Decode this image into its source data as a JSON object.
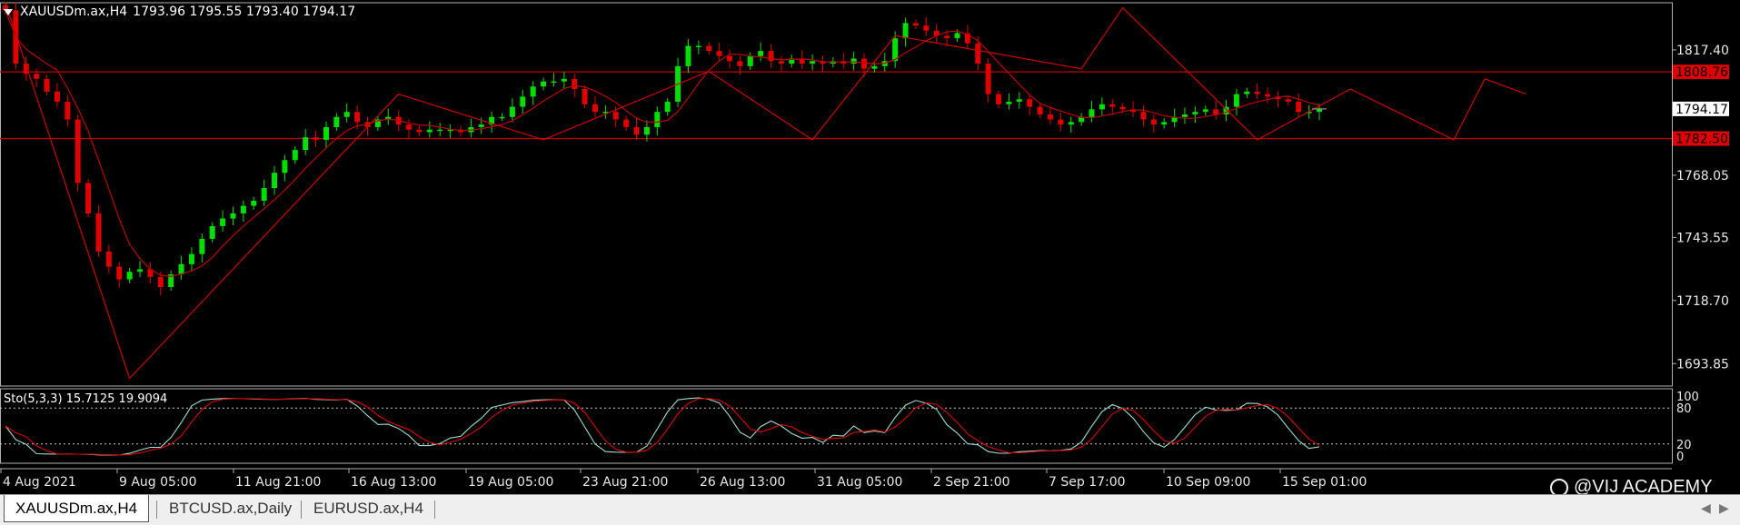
{
  "header": {
    "symbol": "XAUUSDm.ax,H4",
    "ohlc": "1793.96 1795.55 1793.40 1794.17"
  },
  "stochastic": {
    "label": "Sto(5,3,3) 15.7125 19.9094",
    "scale_labels": [
      "100",
      "80",
      "20",
      "0"
    ]
  },
  "price_scale": {
    "ticks": [
      "1817.40",
      "1768.05",
      "1743.55",
      "1718.70",
      "1693.85"
    ],
    "resistance_label": "1808.76",
    "support_label": "1782.50",
    "current_label": "1794.17"
  },
  "time_axis": {
    "labels": [
      "4 Aug 2021",
      "9 Aug 05:00",
      "11 Aug 21:00",
      "16 Aug 13:00",
      "19 Aug 05:00",
      "23 Aug 21:00",
      "26 Aug 13:00",
      "31 Aug 05:00",
      "2 Sep 21:00",
      "7 Sep 17:00",
      "10 Sep 09:00",
      "15 Sep 01:00"
    ]
  },
  "tabs": [
    {
      "label": "XAUUSDm.ax,H4",
      "active": true
    },
    {
      "label": "BTCUSD.ax,Daily",
      "active": false
    },
    {
      "label": "EURUSD.ax,H4",
      "active": false
    }
  ],
  "watermark": "@VIJ ACADEMY",
  "colors": {
    "bull": "#00e000",
    "bear": "#e00000",
    "level_line": "#c00000",
    "label_bg": "#e00000",
    "grid": "#ffffff"
  },
  "chart_data": {
    "type": "candlestick",
    "price_range": [
      1685,
      1836
    ],
    "levels": {
      "resistance": 1808.76,
      "support": 1782.5
    },
    "stoch_range": [
      0,
      100
    ],
    "stoch_levels": [
      80,
      20
    ],
    "close_path": [
      1833,
      1812,
      1808,
      1806,
      1801,
      1797,
      1790,
      1765,
      1753,
      1738,
      1732,
      1727,
      1730,
      1731,
      1728,
      1724,
      1729,
      1733,
      1737,
      1743,
      1748,
      1751,
      1753,
      1756,
      1758,
      1763,
      1769,
      1774,
      1778,
      1783,
      1782,
      1787,
      1791,
      1793,
      1789,
      1787,
      1790,
      1791,
      1788,
      1786,
      1785,
      1786,
      1786,
      1786,
      1785,
      1787,
      1788,
      1791,
      1791,
      1795,
      1799,
      1803,
      1805,
      1805,
      1806,
      1802,
      1796,
      1793,
      1793,
      1790,
      1787,
      1784,
      1787,
      1793,
      1797,
      1811,
      1819,
      1819,
      1817,
      1815,
      1813,
      1811,
      1815,
      1817,
      1813,
      1812,
      1814,
      1812,
      1813,
      1812,
      1813,
      1812,
      1814,
      1810,
      1811,
      1813,
      1822,
      1828,
      1827,
      1825,
      1823,
      1822,
      1824,
      1820,
      1812,
      1800,
      1796,
      1797,
      1798,
      1795,
      1792,
      1790,
      1788,
      1789,
      1791,
      1794,
      1796,
      1795,
      1794,
      1793,
      1790,
      1788,
      1789,
      1791,
      1792,
      1793,
      1794,
      1792,
      1795,
      1800,
      1801,
      1800,
      1799,
      1798,
      1797,
      1793,
      1793,
      1794
    ],
    "zigzag": [
      [
        0,
        1836
      ],
      [
        12,
        1688
      ],
      [
        38,
        1800
      ],
      [
        52,
        1782
      ],
      [
        68,
        1809
      ],
      [
        78,
        1782
      ],
      [
        86,
        1823
      ],
      [
        104,
        1810
      ],
      [
        108,
        1834
      ],
      [
        121,
        1782
      ],
      [
        130,
        1802
      ],
      [
        140,
        1782
      ],
      [
        143,
        1806
      ],
      [
        147,
        1800
      ]
    ]
  }
}
